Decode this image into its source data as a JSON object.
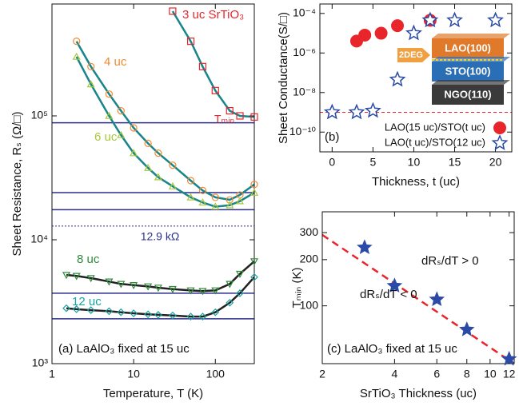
{
  "chart_data": [
    {
      "type": "line",
      "annotation": "(a) LaAlO₃ fixed at 15 uc",
      "xlabel": "Temperature, T (K)",
      "ylabel": "Sheet Resistance, Rₛ (Ω/□)",
      "xlog": true,
      "ylog": true,
      "xlim": [
        1,
        300
      ],
      "ylim": [
        1000,
        800000
      ],
      "xticks": [
        1,
        10,
        100
      ],
      "yticks": [
        {
          "value": 1000,
          "label": "10³"
        },
        {
          "value": 10000,
          "label": "10⁴"
        },
        {
          "value": 100000,
          "label": "10⁵"
        }
      ],
      "x": [
        1.5,
        2,
        3,
        5,
        7,
        10,
        15,
        20,
        30,
        50,
        70,
        100,
        150,
        200,
        300
      ],
      "series": [
        {
          "name": "3 uc SrTiO₃",
          "color": "#e8252b",
          "line_color": "#17858a",
          "marker": "square",
          "values": [
            null,
            null,
            null,
            null,
            null,
            null,
            null,
            null,
            700000,
            400000,
            250000,
            160000,
            110000,
            100000,
            98000
          ]
        },
        {
          "name": "4 uc",
          "color": "#f08a30",
          "line_color": "#17858a",
          "marker": "circle",
          "values": [
            null,
            400000,
            250000,
            150000,
            110000,
            80000,
            60000,
            50000,
            40000,
            30000,
            25000,
            22000,
            21000,
            23000,
            28000
          ]
        },
        {
          "name": "6 uc",
          "color": "#a8c83a",
          "line_color": "#17858a",
          "marker": "triangle",
          "values": [
            null,
            300000,
            180000,
            100000,
            70000,
            50000,
            38000,
            32000,
            27000,
            22000,
            20000,
            18500,
            19000,
            20500,
            24000
          ]
        },
        {
          "name": "8 uc",
          "color": "#2e8b3a",
          "line_color": "#222222",
          "marker": "triangle-down",
          "values": [
            5200,
            5100,
            4900,
            4600,
            4400,
            4300,
            4200,
            4100,
            4000,
            3900,
            3850,
            3900,
            4400,
            5300,
            6700
          ]
        },
        {
          "name": "12 uc",
          "color": "#1aa0a0",
          "line_color": "#222222",
          "marker": "diamond",
          "values": [
            2800,
            2750,
            2700,
            2650,
            2600,
            2550,
            2500,
            2480,
            2450,
            2400,
            2400,
            2600,
            3100,
            3700,
            5000
          ]
        }
      ],
      "hlines": {
        "color": "#2b2f8c",
        "values": [
          88000,
          24000,
          17500,
          3700,
          2300
        ]
      },
      "reference": {
        "value": 12900,
        "label": "12.9 kΩ",
        "color": "#2b2f8c"
      },
      "tmin_label": "Tₘᵢₙ"
    },
    {
      "type": "scatter",
      "annotation": "(b)",
      "xlabel": "Thickness, t (uc)",
      "ylabel": "Sheet Conductance(S/□)",
      "ylog": true,
      "xlim": [
        -1.5,
        22
      ],
      "ylim": [
        1e-11,
        0.0003
      ],
      "xticks": [
        0,
        5,
        10,
        15,
        20
      ],
      "yticks": [
        {
          "value": 1e-10,
          "label": "10⁻¹⁰"
        },
        {
          "value": 1e-08,
          "label": "10⁻⁸"
        },
        {
          "value": 1e-06,
          "label": "10⁻⁶"
        },
        {
          "value": 0.0001,
          "label": "10⁻⁴"
        }
      ],
      "series": [
        {
          "name": "LAO(15 uc)/STO(t uc)",
          "color": "#e8252b",
          "marker": "circle",
          "x": [
            3,
            4,
            6,
            8,
            12
          ],
          "values": [
            4e-06,
            8e-06,
            1e-05,
            2.4e-05,
            4.5e-05
          ]
        },
        {
          "name": "LAO(t uc)/STO(12 uc)",
          "color": "#2b4aa8",
          "marker": "star",
          "x": [
            0,
            3,
            5,
            8,
            10,
            12,
            15,
            20
          ],
          "values": [
            1e-09,
            1e-09,
            1.2e-09,
            4.5e-08,
            1e-05,
            4.5e-05,
            4.5e-05,
            4.5e-05
          ]
        }
      ],
      "hline": {
        "value": 1e-09,
        "color": "#e8252b"
      },
      "inset": {
        "arrow": "2DEG",
        "layers": [
          "LAO(100)",
          "STO(100)",
          "NGO(110)"
        ]
      }
    },
    {
      "type": "scatter",
      "annotations": [
        "dRₛ/dT > 0",
        "dRₛ/dT < 0",
        "(c) LaAlO₃ fixed at 15 uc"
      ],
      "xlabel": "SrTiO₃ Thickness (uc)",
      "ylabel": "Tₘᵢₙ (K)",
      "xlog": true,
      "ylog": true,
      "xlim": [
        2,
        12.6
      ],
      "ylim": [
        42,
        410
      ],
      "xticks": [
        2,
        4,
        6,
        8,
        10,
        12
      ],
      "yticks": [
        100,
        200,
        300
      ],
      "series": [
        {
          "color": "#2b4aa8",
          "marker": "star",
          "x": [
            3,
            4,
            6,
            8,
            12
          ],
          "values": [
            240,
            135,
            110,
            70,
            45
          ]
        }
      ],
      "fit": {
        "color": "#e8252b",
        "x": [
          2,
          12.6
        ],
        "values": [
          290,
          42
        ]
      }
    }
  ]
}
